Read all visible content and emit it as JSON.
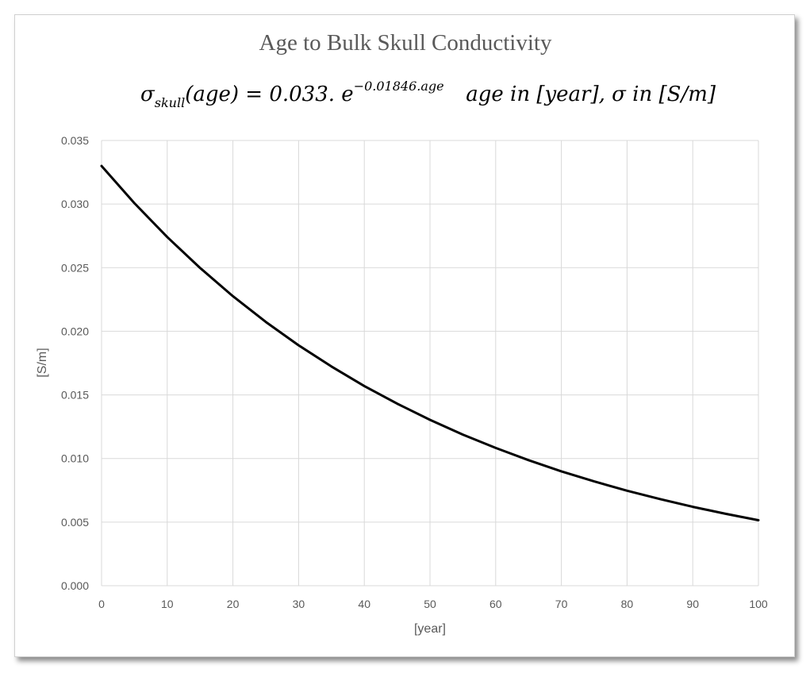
{
  "chart_data": {
    "type": "line",
    "title": "Age to Bulk Skull Conductivity",
    "equation": {
      "sigma": "σ",
      "sub": "skull",
      "lhs_rest": "(age) = 0.033. e",
      "exponent": "−0.01846.age",
      "note": "age in [year], σ in [S/m]"
    },
    "xlabel": "[year]",
    "ylabel": "[S/m]",
    "xlim": [
      0,
      100
    ],
    "ylim": [
      0,
      0.035
    ],
    "x_ticks": [
      "0",
      "10",
      "20",
      "30",
      "40",
      "50",
      "60",
      "70",
      "80",
      "90",
      "100"
    ],
    "y_ticks": [
      "0.000",
      "0.005",
      "0.010",
      "0.015",
      "0.020",
      "0.025",
      "0.030",
      "0.035"
    ],
    "grid": true,
    "legend": "none",
    "line_color": "#000000",
    "grid_color": "#d9d9d9",
    "series": [
      {
        "x": [
          0,
          5,
          10,
          15,
          20,
          25,
          30,
          35,
          40,
          45,
          50,
          55,
          60,
          65,
          70,
          75,
          80,
          85,
          90,
          95,
          100
        ],
        "values": [
          0.033,
          0.03007,
          0.02741,
          0.02498,
          0.02276,
          0.02074,
          0.0189,
          0.01723,
          0.0157,
          0.01431,
          0.01304,
          0.01188,
          0.01083,
          0.00987,
          0.00899,
          0.0082,
          0.00747,
          0.00681,
          0.0062,
          0.00565,
          0.00515
        ]
      }
    ]
  }
}
